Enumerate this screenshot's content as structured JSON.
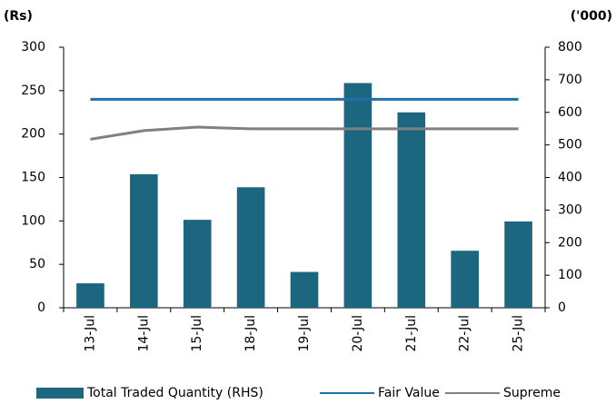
{
  "chart_data": {
    "type": "bar-line",
    "y_label": "(Rs)",
    "y2_label": "('000)",
    "categories": [
      "13-Jul",
      "14-Jul",
      "15-Jul",
      "18-Jul",
      "19-Jul",
      "20-Jul",
      "21-Jul",
      "22-Jul",
      "25-Jul"
    ],
    "series": [
      {
        "name": "Total Traded Quantity (RHS)",
        "type": "bar",
        "axis": "y2",
        "color": "#1c6680",
        "values": [
          75,
          410,
          270,
          370,
          110,
          690,
          600,
          175,
          265
        ]
      },
      {
        "name": "Fair Value",
        "type": "line",
        "axis": "y",
        "color": "#1f70a8",
        "values": [
          240,
          240,
          240,
          240,
          240,
          240,
          240,
          240,
          240
        ]
      },
      {
        "name": "Supreme",
        "type": "line",
        "axis": "y",
        "color": "#808080",
        "values": [
          194,
          204,
          208,
          206,
          206,
          206,
          206,
          206,
          206
        ]
      }
    ],
    "ylim": [
      0,
      300
    ],
    "yticks": [
      0,
      50,
      100,
      150,
      200,
      250,
      300
    ],
    "y2lim": [
      0,
      800
    ],
    "y2ticks": [
      0,
      100,
      200,
      300,
      400,
      500,
      600,
      700,
      800
    ],
    "grid": false,
    "legend": "bottom"
  }
}
